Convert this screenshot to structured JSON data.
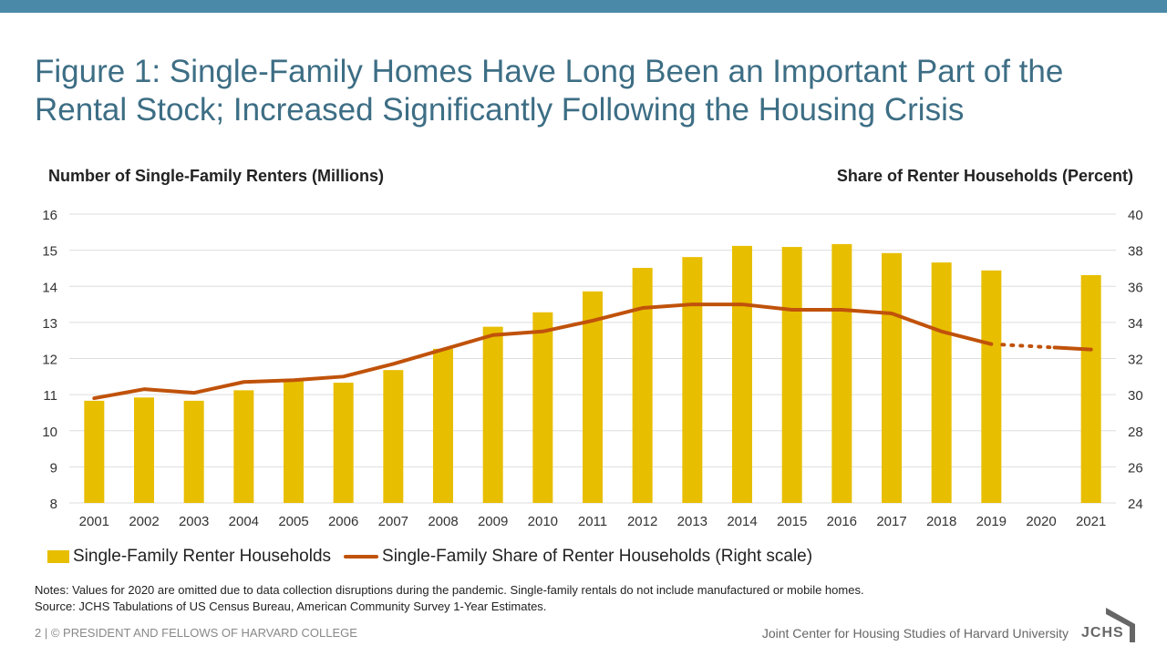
{
  "title": "Figure 1: Single-Family Homes Have Long Been an Important Part of the Rental Stock; Increased Significantly Following the Housing Crisis",
  "chart_data": {
    "type": "bar",
    "title": "Figure 1: Single-Family Homes Have Long Been an Important Part of the Rental Stock; Increased Significantly Following the Housing Crisis",
    "ylabel": "Number of Single-Family Renters (Millions)",
    "ylabel_right": "Share of Renter Households (Percent)",
    "ylim": [
      8,
      16
    ],
    "yticks": [
      "16",
      "15",
      "14",
      "13",
      "12",
      "11",
      "10",
      "9",
      "8"
    ],
    "ylim_right": [
      24,
      40
    ],
    "yticks_right": [
      "40",
      "38",
      "36",
      "34",
      "32",
      "30",
      "28",
      "26",
      "24"
    ],
    "categories": [
      "2001",
      "2002",
      "2003",
      "2004",
      "2005",
      "2006",
      "2007",
      "2008",
      "2009",
      "2010",
      "2011",
      "2012",
      "2013",
      "2014",
      "2015",
      "2016",
      "2017",
      "2018",
      "2019",
      "2020",
      "2021"
    ],
    "series": [
      {
        "name": "Single-Family Renter Households",
        "type": "bar",
        "axis": "left",
        "color": "#e8be00",
        "values": [
          10.83,
          10.92,
          10.83,
          11.12,
          11.38,
          11.33,
          11.68,
          12.27,
          12.88,
          13.28,
          13.86,
          14.51,
          14.81,
          15.12,
          15.09,
          15.17,
          14.92,
          14.66,
          14.44,
          null,
          14.31
        ]
      },
      {
        "name": "Single-Family Share of Renter Households (Right scale)",
        "type": "line",
        "axis": "right",
        "color": "#c0520a",
        "values": [
          29.8,
          30.3,
          30.1,
          30.7,
          30.8,
          31.0,
          31.7,
          32.5,
          33.3,
          33.5,
          34.1,
          34.8,
          35.0,
          35.0,
          34.7,
          34.7,
          34.5,
          33.5,
          32.8,
          null,
          32.5
        ],
        "gap_note": "dotted connector from 2019 to 2021"
      }
    ]
  },
  "legend": {
    "bar_label": "Single-Family Renter Households",
    "line_label": "Single-Family Share of Renter Households (Right scale)"
  },
  "notes": {
    "line1": "Notes: Values for 2020 are omitted due to data collection disruptions during the pandemic. Single-family rentals do not include manufactured or mobile homes.",
    "line2": "Source: JCHS Tabulations of US Census Bureau, American Community Survey 1-Year Estimates."
  },
  "footer": {
    "left": "2 | © PRESIDENT AND FELLOWS OF HARVARD COLLEGE",
    "right": "Joint Center for Housing Studies of Harvard University",
    "logo_text": "JCHS"
  },
  "colors": {
    "bar": "#e8be00",
    "line": "#c0520a",
    "title": "#3d6e85",
    "topbar": "#4a8aa8"
  }
}
